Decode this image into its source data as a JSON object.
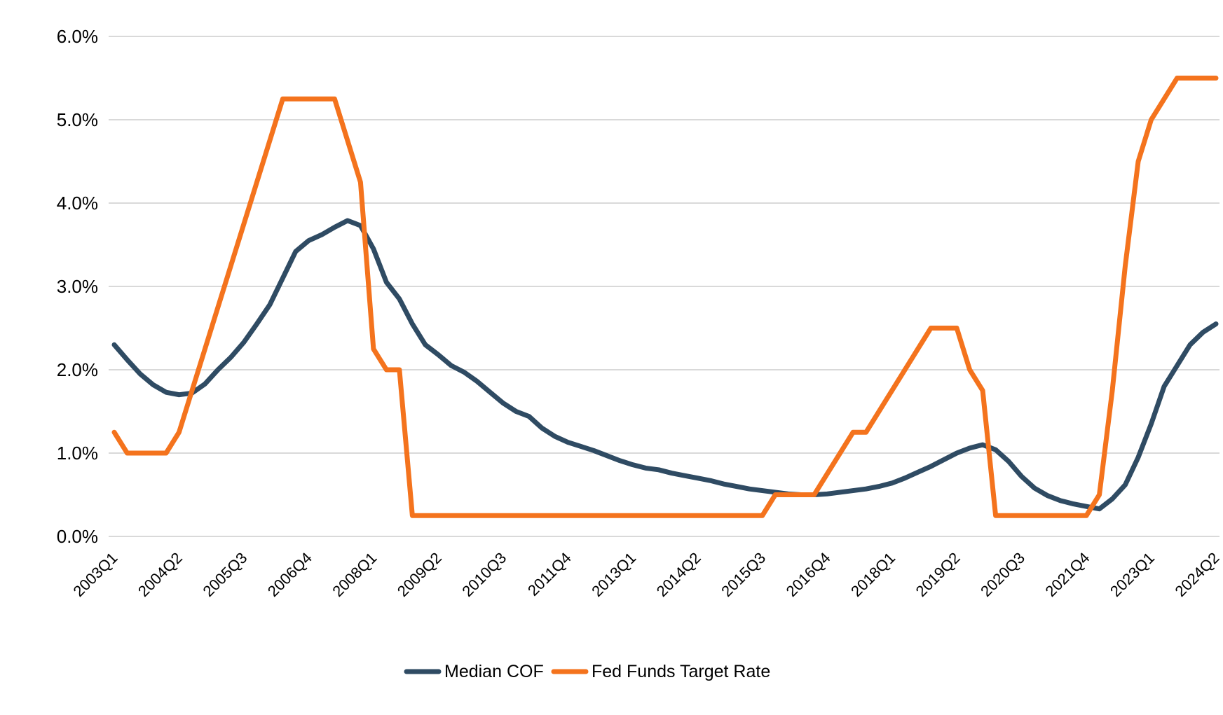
{
  "chart_data": {
    "type": "line",
    "title": "",
    "colors": {
      "median_cof": "#2F4B63",
      "fed_funds": "#F4731D",
      "gridline": "#D9D9D9",
      "axis_text": "#000000",
      "background": "#FFFFFF"
    },
    "y_axis": {
      "min": 0,
      "max": 6,
      "tick_step": 1,
      "labels": [
        "0.0%",
        "1.0%",
        "2.0%",
        "3.0%",
        "4.0%",
        "5.0%",
        "6.0%"
      ]
    },
    "x_axis": {
      "tick_every_n_points": 5,
      "tick_labels": [
        "2003Q1",
        "2004Q2",
        "2005Q3",
        "2006Q4",
        "2008Q1",
        "2009Q2",
        "2010Q3",
        "2011Q4",
        "2013Q1",
        "2014Q2",
        "2015Q3",
        "2016Q4",
        "2018Q1",
        "2019Q2",
        "2020Q3",
        "2021Q4",
        "2023Q1",
        "2024Q2"
      ],
      "label_rotation_deg": 45
    },
    "x": [
      "2003Q1",
      "2003Q2",
      "2003Q3",
      "2003Q4",
      "2004Q1",
      "2004Q2",
      "2004Q3",
      "2004Q4",
      "2005Q1",
      "2005Q2",
      "2005Q3",
      "2005Q4",
      "2006Q1",
      "2006Q2",
      "2006Q3",
      "2006Q4",
      "2007Q1",
      "2007Q2",
      "2007Q3",
      "2007Q4",
      "2008Q1",
      "2008Q2",
      "2008Q3",
      "2008Q4",
      "2009Q1",
      "2009Q2",
      "2009Q3",
      "2009Q4",
      "2010Q1",
      "2010Q2",
      "2010Q3",
      "2010Q4",
      "2011Q1",
      "2011Q2",
      "2011Q3",
      "2011Q4",
      "2012Q1",
      "2012Q2",
      "2012Q3",
      "2012Q4",
      "2013Q1",
      "2013Q2",
      "2013Q3",
      "2013Q4",
      "2014Q1",
      "2014Q2",
      "2014Q3",
      "2014Q4",
      "2015Q1",
      "2015Q2",
      "2015Q3",
      "2015Q4",
      "2016Q1",
      "2016Q2",
      "2016Q3",
      "2016Q4",
      "2017Q1",
      "2017Q2",
      "2017Q3",
      "2017Q4",
      "2018Q1",
      "2018Q2",
      "2018Q3",
      "2018Q4",
      "2019Q1",
      "2019Q2",
      "2019Q3",
      "2019Q4",
      "2020Q1",
      "2020Q2",
      "2020Q3",
      "2020Q4",
      "2021Q1",
      "2021Q2",
      "2021Q3",
      "2021Q4",
      "2022Q1",
      "2022Q2",
      "2022Q3",
      "2022Q4",
      "2023Q1",
      "2023Q2",
      "2023Q3",
      "2023Q4",
      "2024Q1",
      "2024Q2"
    ],
    "series": [
      {
        "name": "Median COF",
        "color": "#2F4B63",
        "values": [
          2.3,
          2.12,
          1.95,
          1.82,
          1.73,
          1.7,
          1.72,
          1.83,
          2.0,
          2.15,
          2.33,
          2.55,
          2.78,
          3.1,
          3.42,
          3.55,
          3.62,
          3.71,
          3.79,
          3.73,
          3.45,
          3.05,
          2.85,
          2.55,
          2.3,
          2.18,
          2.05,
          1.97,
          1.86,
          1.73,
          1.6,
          1.5,
          1.44,
          1.3,
          1.2,
          1.13,
          1.08,
          1.03,
          0.97,
          0.91,
          0.86,
          0.82,
          0.8,
          0.76,
          0.73,
          0.7,
          0.67,
          0.63,
          0.6,
          0.57,
          0.55,
          0.53,
          0.51,
          0.5,
          0.5,
          0.51,
          0.53,
          0.55,
          0.57,
          0.6,
          0.64,
          0.7,
          0.77,
          0.84,
          0.92,
          1.0,
          1.06,
          1.1,
          1.04,
          0.9,
          0.72,
          0.58,
          0.49,
          0.43,
          0.39,
          0.36,
          0.33,
          0.45,
          0.62,
          0.95,
          1.35,
          1.8,
          2.05,
          2.3,
          2.45,
          2.55
        ]
      },
      {
        "name": "Fed Funds Target Rate",
        "color": "#F4731D",
        "values": [
          1.25,
          1.0,
          1.0,
          1.0,
          1.0,
          1.25,
          1.75,
          2.25,
          2.75,
          3.25,
          3.75,
          4.25,
          4.75,
          5.25,
          5.25,
          5.25,
          5.25,
          5.25,
          4.75,
          4.25,
          2.25,
          2.0,
          2.0,
          0.25,
          0.25,
          0.25,
          0.25,
          0.25,
          0.25,
          0.25,
          0.25,
          0.25,
          0.25,
          0.25,
          0.25,
          0.25,
          0.25,
          0.25,
          0.25,
          0.25,
          0.25,
          0.25,
          0.25,
          0.25,
          0.25,
          0.25,
          0.25,
          0.25,
          0.25,
          0.25,
          0.25,
          0.5,
          0.5,
          0.5,
          0.5,
          0.75,
          1.0,
          1.25,
          1.25,
          1.5,
          1.75,
          2.0,
          2.25,
          2.5,
          2.5,
          2.5,
          2.0,
          1.75,
          0.25,
          0.25,
          0.25,
          0.25,
          0.25,
          0.25,
          0.25,
          0.25,
          0.5,
          1.75,
          3.25,
          4.5,
          5.0,
          5.25,
          5.5,
          5.5,
          5.5,
          5.5
        ]
      }
    ],
    "legend": {
      "position": "bottom-center",
      "entries": [
        "Median COF",
        "Fed Funds Target Rate"
      ]
    },
    "grid": "horizontal"
  }
}
